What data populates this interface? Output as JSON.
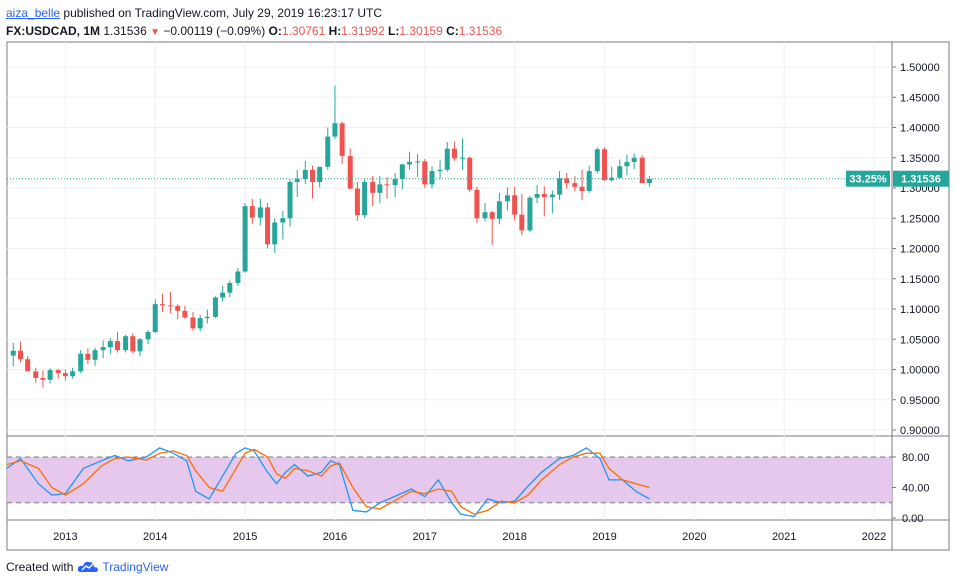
{
  "header": {
    "author": "aiza_belle",
    "published_text": "published on TradingView.com, July 29, 2019 16:23:17 UTC",
    "symbol": "FX:USDCAD, 1M",
    "last": "1.31536",
    "change": "−0.00119 (−0.09%)",
    "o_label": "O:",
    "o_value": "1.30761",
    "h_label": "H:",
    "h_value": "1.31992",
    "l_label": "L:",
    "l_value": "1.30159",
    "c_label": "C:",
    "c_value": "1.31536"
  },
  "price_badge": {
    "percent": "33.25%",
    "price": "1.31536"
  },
  "footer": {
    "created_with": "Created with",
    "brand": "TradingView"
  },
  "colors": {
    "up": "#26a69a",
    "down": "#ef5350",
    "k_line": "#2196f3",
    "d_line": "#ff6d00",
    "band": "#e1bee7"
  },
  "chart_data": [
    {
      "type": "candlestick",
      "symbol": "FX:USDCAD",
      "interval": "1M",
      "ylim": [
        0.9,
        1.5
      ],
      "ytick_labels": [
        "1.50000",
        "1.45000",
        "1.40000",
        "1.35000",
        "1.30000",
        "1.25000",
        "1.20000",
        "1.15000",
        "1.10000",
        "1.05000",
        "1.00000",
        "0.95000",
        "0.90000"
      ],
      "yticks": [
        1.5,
        1.45,
        1.4,
        1.35,
        1.3,
        1.25,
        1.2,
        1.15,
        1.1,
        1.05,
        1.0,
        0.95,
        0.9
      ],
      "x_labels": [
        "2013",
        "2014",
        "2015",
        "2016",
        "2017",
        "2018",
        "2019",
        "2020",
        "2021",
        "2022"
      ],
      "x_range": [
        2012.35,
        2022.2
      ],
      "last_price": 1.31536,
      "grid": true,
      "candles": [
        {
          "t": 2012.42,
          "o": 1.023,
          "h": 1.044,
          "l": 1.005,
          "c": 1.031
        },
        {
          "t": 2012.5,
          "o": 1.031,
          "h": 1.046,
          "l": 1.012,
          "c": 1.017
        },
        {
          "t": 2012.58,
          "o": 1.017,
          "h": 1.022,
          "l": 0.998,
          "c": 0.997
        },
        {
          "t": 2012.67,
          "o": 0.997,
          "h": 1.003,
          "l": 0.978,
          "c": 0.986
        },
        {
          "t": 2012.75,
          "o": 0.986,
          "h": 0.998,
          "l": 0.97,
          "c": 0.983
        },
        {
          "t": 2012.83,
          "o": 0.983,
          "h": 1.002,
          "l": 0.977,
          "c": 0.999
        },
        {
          "t": 2012.92,
          "o": 0.999,
          "h": 1.001,
          "l": 0.985,
          "c": 0.994
        },
        {
          "t": 2013.0,
          "o": 0.994,
          "h": 1.0,
          "l": 0.982,
          "c": 0.989
        },
        {
          "t": 2013.08,
          "o": 0.989,
          "h": 1.003,
          "l": 0.985,
          "c": 0.997
        },
        {
          "t": 2013.17,
          "o": 0.997,
          "h": 1.032,
          "l": 0.994,
          "c": 1.026
        },
        {
          "t": 2013.25,
          "o": 1.026,
          "h": 1.035,
          "l": 1.009,
          "c": 1.016
        },
        {
          "t": 2013.33,
          "o": 1.016,
          "h": 1.036,
          "l": 1.006,
          "c": 1.032
        },
        {
          "t": 2013.42,
          "o": 1.032,
          "h": 1.048,
          "l": 1.019,
          "c": 1.037
        },
        {
          "t": 2013.5,
          "o": 1.037,
          "h": 1.052,
          "l": 1.025,
          "c": 1.047
        },
        {
          "t": 2013.58,
          "o": 1.047,
          "h": 1.062,
          "l": 1.028,
          "c": 1.032
        },
        {
          "t": 2013.67,
          "o": 1.032,
          "h": 1.057,
          "l": 1.028,
          "c": 1.055
        },
        {
          "t": 2013.75,
          "o": 1.055,
          "h": 1.06,
          "l": 1.026,
          "c": 1.03
        },
        {
          "t": 2013.83,
          "o": 1.03,
          "h": 1.052,
          "l": 1.022,
          "c": 1.05
        },
        {
          "t": 2013.92,
          "o": 1.05,
          "h": 1.065,
          "l": 1.042,
          "c": 1.062
        },
        {
          "t": 2014.0,
          "o": 1.062,
          "h": 1.116,
          "l": 1.06,
          "c": 1.108
        },
        {
          "t": 2014.08,
          "o": 1.108,
          "h": 1.125,
          "l": 1.095,
          "c": 1.106
        },
        {
          "t": 2014.17,
          "o": 1.106,
          "h": 1.128,
          "l": 1.093,
          "c": 1.105
        },
        {
          "t": 2014.25,
          "o": 1.105,
          "h": 1.108,
          "l": 1.083,
          "c": 1.097
        },
        {
          "t": 2014.33,
          "o": 1.097,
          "h": 1.105,
          "l": 1.084,
          "c": 1.086
        },
        {
          "t": 2014.42,
          "o": 1.086,
          "h": 1.095,
          "l": 1.064,
          "c": 1.068
        },
        {
          "t": 2014.5,
          "o": 1.068,
          "h": 1.09,
          "l": 1.063,
          "c": 1.085
        },
        {
          "t": 2014.58,
          "o": 1.085,
          "h": 1.099,
          "l": 1.076,
          "c": 1.087
        },
        {
          "t": 2014.67,
          "o": 1.087,
          "h": 1.121,
          "l": 1.085,
          "c": 1.119
        },
        {
          "t": 2014.75,
          "o": 1.119,
          "h": 1.138,
          "l": 1.112,
          "c": 1.127
        },
        {
          "t": 2014.83,
          "o": 1.127,
          "h": 1.147,
          "l": 1.12,
          "c": 1.143
        },
        {
          "t": 2014.92,
          "o": 1.143,
          "h": 1.168,
          "l": 1.138,
          "c": 1.162
        },
        {
          "t": 2015.0,
          "o": 1.162,
          "h": 1.275,
          "l": 1.16,
          "c": 1.27
        },
        {
          "t": 2015.08,
          "o": 1.27,
          "h": 1.282,
          "l": 1.24,
          "c": 1.251
        },
        {
          "t": 2015.17,
          "o": 1.251,
          "h": 1.282,
          "l": 1.238,
          "c": 1.268
        },
        {
          "t": 2015.25,
          "o": 1.268,
          "h": 1.275,
          "l": 1.2,
          "c": 1.207
        },
        {
          "t": 2015.33,
          "o": 1.207,
          "h": 1.25,
          "l": 1.193,
          "c": 1.243
        },
        {
          "t": 2015.42,
          "o": 1.243,
          "h": 1.262,
          "l": 1.215,
          "c": 1.25
        },
        {
          "t": 2015.5,
          "o": 1.25,
          "h": 1.314,
          "l": 1.236,
          "c": 1.31
        },
        {
          "t": 2015.58,
          "o": 1.31,
          "h": 1.33,
          "l": 1.285,
          "c": 1.315
        },
        {
          "t": 2015.67,
          "o": 1.315,
          "h": 1.345,
          "l": 1.307,
          "c": 1.33
        },
        {
          "t": 2015.75,
          "o": 1.33,
          "h": 1.337,
          "l": 1.283,
          "c": 1.31
        },
        {
          "t": 2015.83,
          "o": 1.31,
          "h": 1.335,
          "l": 1.301,
          "c": 1.335
        },
        {
          "t": 2015.92,
          "o": 1.335,
          "h": 1.4,
          "l": 1.33,
          "c": 1.385
        },
        {
          "t": 2016.0,
          "o": 1.385,
          "h": 1.469,
          "l": 1.381,
          "c": 1.407
        },
        {
          "t": 2016.08,
          "o": 1.407,
          "h": 1.41,
          "l": 1.34,
          "c": 1.353
        },
        {
          "t": 2016.17,
          "o": 1.353,
          "h": 1.365,
          "l": 1.298,
          "c": 1.299
        },
        {
          "t": 2016.25,
          "o": 1.299,
          "h": 1.31,
          "l": 1.246,
          "c": 1.255
        },
        {
          "t": 2016.33,
          "o": 1.255,
          "h": 1.315,
          "l": 1.25,
          "c": 1.31
        },
        {
          "t": 2016.42,
          "o": 1.31,
          "h": 1.32,
          "l": 1.27,
          "c": 1.292
        },
        {
          "t": 2016.5,
          "o": 1.292,
          "h": 1.32,
          "l": 1.275,
          "c": 1.306
        },
        {
          "t": 2016.58,
          "o": 1.306,
          "h": 1.318,
          "l": 1.282,
          "c": 1.305
        },
        {
          "t": 2016.67,
          "o": 1.305,
          "h": 1.325,
          "l": 1.285,
          "c": 1.315
        },
        {
          "t": 2016.75,
          "o": 1.315,
          "h": 1.34,
          "l": 1.298,
          "c": 1.339
        },
        {
          "t": 2016.83,
          "o": 1.339,
          "h": 1.36,
          "l": 1.33,
          "c": 1.343
        },
        {
          "t": 2016.92,
          "o": 1.343,
          "h": 1.356,
          "l": 1.318,
          "c": 1.344
        },
        {
          "t": 2017.0,
          "o": 1.344,
          "h": 1.348,
          "l": 1.3,
          "c": 1.306
        },
        {
          "t": 2017.08,
          "o": 1.306,
          "h": 1.336,
          "l": 1.299,
          "c": 1.328
        },
        {
          "t": 2017.17,
          "o": 1.328,
          "h": 1.346,
          "l": 1.315,
          "c": 1.33
        },
        {
          "t": 2017.25,
          "o": 1.33,
          "h": 1.376,
          "l": 1.327,
          "c": 1.365
        },
        {
          "t": 2017.33,
          "o": 1.365,
          "h": 1.377,
          "l": 1.345,
          "c": 1.349
        },
        {
          "t": 2017.42,
          "o": 1.349,
          "h": 1.382,
          "l": 1.33,
          "c": 1.35
        },
        {
          "t": 2017.5,
          "o": 1.35,
          "h": 1.352,
          "l": 1.293,
          "c": 1.297
        },
        {
          "t": 2017.58,
          "o": 1.297,
          "h": 1.302,
          "l": 1.242,
          "c": 1.25
        },
        {
          "t": 2017.67,
          "o": 1.25,
          "h": 1.275,
          "l": 1.245,
          "c": 1.26
        },
        {
          "t": 2017.75,
          "o": 1.26,
          "h": 1.262,
          "l": 1.206,
          "c": 1.249
        },
        {
          "t": 2017.83,
          "o": 1.249,
          "h": 1.292,
          "l": 1.24,
          "c": 1.278
        },
        {
          "t": 2017.92,
          "o": 1.278,
          "h": 1.301,
          "l": 1.263,
          "c": 1.288
        },
        {
          "t": 2018.0,
          "o": 1.288,
          "h": 1.302,
          "l": 1.246,
          "c": 1.256
        },
        {
          "t": 2018.08,
          "o": 1.256,
          "h": 1.29,
          "l": 1.222,
          "c": 1.23
        },
        {
          "t": 2018.17,
          "o": 1.23,
          "h": 1.287,
          "l": 1.227,
          "c": 1.284
        },
        {
          "t": 2018.25,
          "o": 1.284,
          "h": 1.305,
          "l": 1.275,
          "c": 1.29
        },
        {
          "t": 2018.33,
          "o": 1.29,
          "h": 1.303,
          "l": 1.253,
          "c": 1.285
        },
        {
          "t": 2018.42,
          "o": 1.285,
          "h": 1.296,
          "l": 1.258,
          "c": 1.289
        },
        {
          "t": 2018.5,
          "o": 1.289,
          "h": 1.328,
          "l": 1.28,
          "c": 1.316
        },
        {
          "t": 2018.58,
          "o": 1.316,
          "h": 1.325,
          "l": 1.299,
          "c": 1.308
        },
        {
          "t": 2018.67,
          "o": 1.308,
          "h": 1.32,
          "l": 1.295,
          "c": 1.302
        },
        {
          "t": 2018.75,
          "o": 1.302,
          "h": 1.33,
          "l": 1.28,
          "c": 1.295
        },
        {
          "t": 2018.83,
          "o": 1.295,
          "h": 1.337,
          "l": 1.292,
          "c": 1.328
        },
        {
          "t": 2018.92,
          "o": 1.328,
          "h": 1.367,
          "l": 1.324,
          "c": 1.364
        },
        {
          "t": 2019.0,
          "o": 1.364,
          "h": 1.367,
          "l": 1.312,
          "c": 1.313
        },
        {
          "t": 2019.08,
          "o": 1.313,
          "h": 1.335,
          "l": 1.31,
          "c": 1.317
        },
        {
          "t": 2019.17,
          "o": 1.317,
          "h": 1.347,
          "l": 1.315,
          "c": 1.336
        },
        {
          "t": 2019.25,
          "o": 1.336,
          "h": 1.355,
          "l": 1.321,
          "c": 1.343
        },
        {
          "t": 2019.33,
          "o": 1.343,
          "h": 1.357,
          "l": 1.331,
          "c": 1.35
        },
        {
          "t": 2019.42,
          "o": 1.35,
          "h": 1.354,
          "l": 1.313,
          "c": 1.308
        },
        {
          "t": 2019.5,
          "o": 1.308,
          "h": 1.32,
          "l": 1.302,
          "c": 1.315
        }
      ]
    },
    {
      "type": "line",
      "indicator": "oscillator",
      "ylim": [
        0,
        100
      ],
      "yticks": [
        0,
        40,
        80
      ],
      "ytick_labels": [
        "0.00",
        "40.00",
        "80.00"
      ],
      "band": [
        20,
        80
      ],
      "series": [
        {
          "color": "#2196f3",
          "x": [
            2012.35,
            2012.5,
            2012.7,
            2012.85,
            2013.0,
            2013.2,
            2013.4,
            2013.55,
            2013.7,
            2013.9,
            2014.05,
            2014.2,
            2014.35,
            2014.45,
            2014.6,
            2014.75,
            2014.9,
            2015.0,
            2015.1,
            2015.25,
            2015.35,
            2015.45,
            2015.55,
            2015.7,
            2015.85,
            2015.95,
            2016.05,
            2016.2,
            2016.35,
            2016.5,
            2016.7,
            2016.85,
            2017.0,
            2017.15,
            2017.3,
            2017.4,
            2017.55,
            2017.7,
            2017.85,
            2018.0,
            2018.15,
            2018.3,
            2018.5,
            2018.65,
            2018.8,
            2018.95,
            2019.05,
            2019.2,
            2019.35,
            2019.5
          ],
          "values": [
            65,
            78,
            45,
            30,
            32,
            65,
            75,
            82,
            75,
            80,
            92,
            85,
            75,
            35,
            25,
            55,
            85,
            92,
            88,
            60,
            45,
            60,
            70,
            55,
            60,
            75,
            70,
            10,
            8,
            20,
            30,
            38,
            28,
            50,
            20,
            5,
            2,
            25,
            20,
            22,
            42,
            60,
            78,
            82,
            92,
            78,
            50,
            50,
            35,
            25
          ]
        },
        {
          "color": "#ff6d00",
          "x": [
            2012.35,
            2012.5,
            2012.7,
            2012.85,
            2013.0,
            2013.2,
            2013.4,
            2013.55,
            2013.7,
            2013.9,
            2014.05,
            2014.2,
            2014.35,
            2014.45,
            2014.6,
            2014.75,
            2014.9,
            2015.0,
            2015.1,
            2015.25,
            2015.35,
            2015.45,
            2015.55,
            2015.7,
            2015.85,
            2015.95,
            2016.05,
            2016.2,
            2016.35,
            2016.5,
            2016.7,
            2016.85,
            2017.0,
            2017.15,
            2017.3,
            2017.4,
            2017.55,
            2017.7,
            2017.85,
            2018.0,
            2018.15,
            2018.3,
            2018.5,
            2018.65,
            2018.8,
            2018.95,
            2019.05,
            2019.2,
            2019.35,
            2019.5
          ],
          "values": [
            70,
            75,
            65,
            40,
            30,
            45,
            68,
            78,
            80,
            76,
            85,
            88,
            82,
            62,
            40,
            35,
            65,
            85,
            90,
            80,
            58,
            52,
            65,
            62,
            55,
            68,
            72,
            40,
            15,
            12,
            25,
            35,
            32,
            38,
            35,
            15,
            5,
            10,
            22,
            20,
            30,
            50,
            70,
            80,
            85,
            85,
            65,
            50,
            45,
            40
          ]
        }
      ]
    }
  ]
}
